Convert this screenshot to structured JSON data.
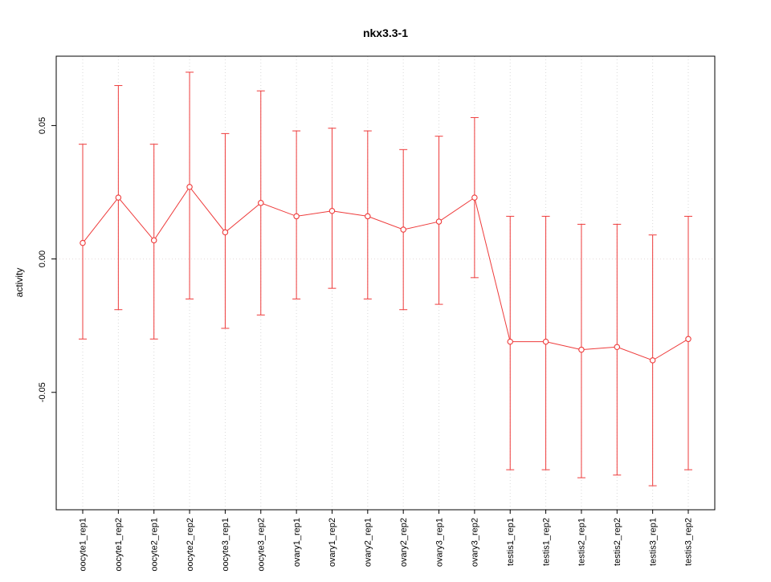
{
  "chart_data": {
    "type": "line",
    "title": "nkx3.3-1",
    "ylabel": "activity",
    "xlabel": "",
    "categories": [
      "oocyte1_rep1",
      "oocyte1_rep2",
      "oocyte2_rep1",
      "oocyte2_rep2",
      "oocyte3_rep1",
      "oocyte3_rep2",
      "ovary1_rep1",
      "ovary1_rep2",
      "ovary2_rep1",
      "ovary2_rep2",
      "ovary3_rep1",
      "ovary3_rep2",
      "testis1_rep1",
      "testis1_rep2",
      "testis2_rep1",
      "testis2_rep2",
      "testis3_rep1",
      "testis3_rep2"
    ],
    "series": [
      {
        "name": "activity",
        "values": [
          0.006,
          0.023,
          0.007,
          0.027,
          0.01,
          0.021,
          0.016,
          0.018,
          0.016,
          0.011,
          0.014,
          0.023,
          -0.031,
          -0.031,
          -0.034,
          -0.033,
          -0.038,
          -0.03
        ],
        "lower": [
          -0.03,
          -0.019,
          -0.03,
          -0.015,
          -0.026,
          -0.021,
          -0.015,
          -0.011,
          -0.015,
          -0.019,
          -0.017,
          -0.007,
          -0.079,
          -0.079,
          -0.082,
          -0.081,
          -0.085,
          -0.079
        ],
        "upper": [
          0.043,
          0.065,
          0.043,
          0.07,
          0.047,
          0.063,
          0.048,
          0.049,
          0.048,
          0.041,
          0.046,
          0.053,
          0.016,
          0.016,
          0.013,
          0.013,
          0.009,
          0.016
        ]
      }
    ],
    "ylim": [
      -0.094,
      0.076
    ],
    "yticks": [
      -0.05,
      0.0,
      0.05
    ],
    "ytick_labels": [
      "-0.05",
      "0.00",
      "0.05"
    ],
    "grid": "dotted vertical line per category, dotted horizontal line at 0",
    "legend_position": "none",
    "series_color": "#ee3b3b",
    "grid_color": "#d9d9d9",
    "zero_line_color": "#e5dada",
    "frame_color": "#000000"
  }
}
